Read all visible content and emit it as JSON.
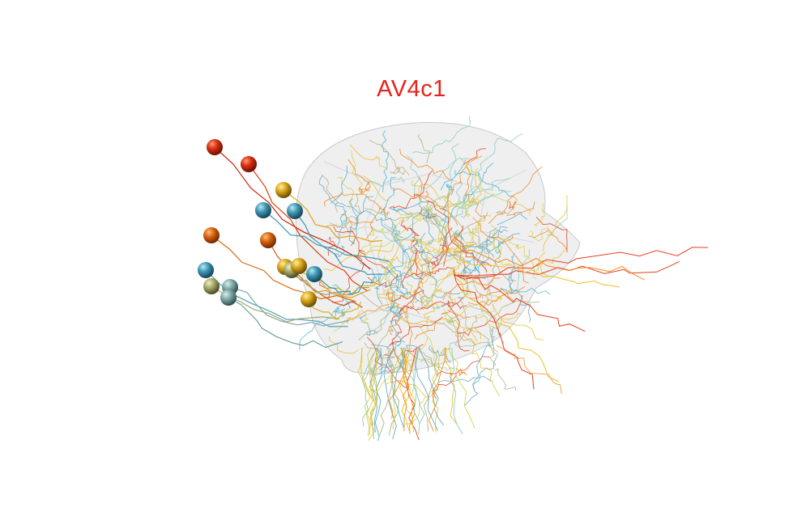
{
  "title": "AV4c1",
  "colors": {
    "background": "#ffffff",
    "title": "#e8231a",
    "neuropil_fill": "#e9e9eb",
    "neuropil_stroke": "#c9c9cf",
    "neuron_palette": [
      "#e8401c",
      "#f08a24",
      "#e9c12a",
      "#d7d14a",
      "#8ccbbf",
      "#4fb3cf",
      "#6aa9c0",
      "#b6b27a"
    ]
  },
  "neurons": [
    {
      "color": "#c8260f",
      "soma": "somata-red"
    },
    {
      "color": "#d8420f",
      "soma": "somata-red"
    },
    {
      "color": "#dc6a10",
      "soma": "somata-orange"
    },
    {
      "color": "#d5550f",
      "soma": "somata-orange"
    },
    {
      "color": "#d9a51a",
      "soma": "somata-gold"
    },
    {
      "color": "#d9a51a",
      "soma": "somata-gold"
    },
    {
      "color": "#e0b81d",
      "soma": "somata-gold"
    },
    {
      "color": "#d6b322",
      "soma": "somata-gold"
    },
    {
      "color": "#3f98b4",
      "soma": "somata-blue"
    },
    {
      "color": "#3f98b4",
      "soma": "somata-blue"
    },
    {
      "color": "#4aa0bb",
      "soma": "somata-blue"
    },
    {
      "color": "#3a8eaa",
      "soma": "somata-blue"
    },
    {
      "color": "#a7a86a",
      "soma": "somata-olive"
    },
    {
      "color": "#7fa9a8",
      "soma": "somata-teal"
    },
    {
      "color": "#6f9e9a",
      "soma": "somata-teal"
    },
    {
      "color": "#97a07a",
      "soma": "somata-olive"
    }
  ]
}
